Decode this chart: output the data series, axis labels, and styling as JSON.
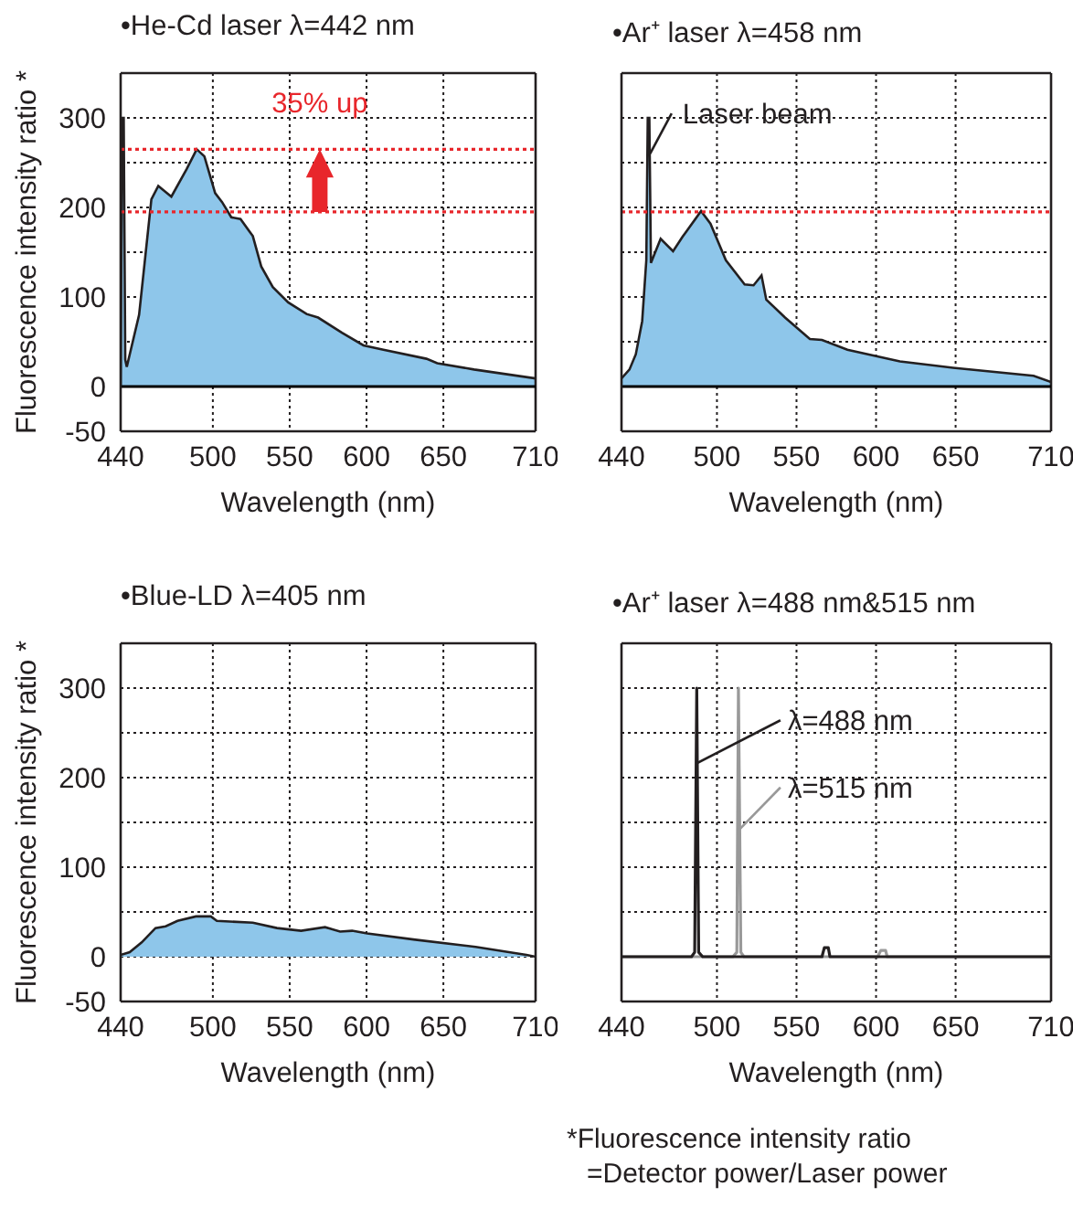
{
  "chart_data": [
    {
      "type": "area",
      "title": "•He-Cd laser λ=442 nm",
      "xlabel": "Wavelength (nm)",
      "ylabel": "Fluorescence intensity ratio *",
      "xlim": [
        440,
        710
      ],
      "ylim": [
        -50,
        350
      ],
      "xticks": [
        440,
        500,
        550,
        600,
        650,
        710
      ],
      "yticks": [
        -50,
        0,
        {
          "value": 50,
          "label": null
        },
        100,
        {
          "value": 150,
          "label": null
        },
        200,
        {
          "value": 250,
          "label": null
        },
        300
      ],
      "grid": true,
      "legend": false,
      "series": [
        {
          "color": "#8ec6ea",
          "x": [
            440,
            441,
            442,
            443,
            444,
            452,
            460,
            464.5,
            473,
            483,
            489.5,
            494.5,
            501.5,
            506,
            512,
            518,
            526,
            531.5,
            539,
            549,
            561,
            568.5,
            584,
            598,
            611,
            639,
            646,
            670,
            710
          ],
          "values": [
            0,
            300,
            300,
            30,
            22,
            80,
            209,
            224,
            212,
            243,
            265,
            257,
            216,
            206,
            189,
            187,
            168,
            134,
            111,
            94,
            81,
            77,
            60,
            46,
            41,
            31,
            26,
            19,
            9
          ]
        }
      ],
      "ref_lines": [
        {
          "axis": "y",
          "value": 0,
          "color": "#000000",
          "line_style": "solid"
        },
        {
          "axis": "y",
          "value": 265,
          "color": "#e8262b",
          "line_style": "dotted"
        },
        {
          "axis": "y",
          "value": 195,
          "color": "#e8262b",
          "line_style": "dotted"
        }
      ],
      "annotations": [
        "35% up"
      ]
    },
    {
      "type": "area",
      "title": "•Ar⁺ laser λ=458 nm",
      "xlabel": "Wavelength (nm)",
      "xlim": [
        440,
        710
      ],
      "ylim": [
        -50,
        350
      ],
      "xticks": [
        440,
        500,
        550,
        600,
        650,
        710
      ],
      "yticks": [
        -50,
        0,
        {
          "value": 50,
          "label": null
        },
        100,
        {
          "value": 150,
          "label": null
        },
        200,
        {
          "value": 250,
          "label": null
        },
        300
      ],
      "grid": true,
      "legend": false,
      "tick_labels": "x",
      "series": [
        {
          "color": "#8ec6ea",
          "x": [
            440,
            445,
            449,
            453,
            455.6,
            456.5,
            457.5,
            458.5,
            464.6,
            472.4,
            478.3,
            490,
            495.9,
            505.6,
            517.4,
            523,
            528,
            531,
            542.8,
            558.4,
            566,
            582,
            597.5,
            615,
            648.4,
            699,
            710
          ],
          "values": [
            9,
            19,
            36,
            73,
            141,
            300,
            300,
            138,
            165,
            151,
            167,
            196,
            182,
            141,
            114,
            113,
            124,
            97,
            77,
            53,
            52,
            41,
            35,
            28,
            21,
            12,
            5
          ]
        }
      ],
      "ref_lines": [
        {
          "axis": "y",
          "value": 0,
          "color": "#000000",
          "line_style": "solid"
        },
        {
          "axis": "y",
          "value": 195,
          "color": "#e8262b",
          "line_style": "dotted"
        }
      ],
      "annotations": [
        {
          "text": "Laser beam",
          "x": 458,
          "y": 260
        }
      ]
    },
    {
      "type": "area",
      "title": "•Blue-LD λ=405 nm",
      "xlabel": "Wavelength (nm)",
      "ylabel": "Fluorescence intensity ratio *",
      "xlim": [
        440,
        710
      ],
      "ylim": [
        -50,
        350
      ],
      "xticks": [
        440,
        500,
        550,
        600,
        650,
        710
      ],
      "yticks": [
        -50,
        0,
        {
          "value": 50,
          "label": null
        },
        100,
        {
          "value": 150,
          "label": null
        },
        200,
        {
          "value": 250,
          "label": null
        },
        300
      ],
      "grid": true,
      "legend": false,
      "series": [
        {
          "color": "#8ec6ea",
          "x": [
            440,
            445.9,
            453.7,
            462.7,
            469.3,
            477,
            489,
            498.7,
            502.6,
            526,
            541.7,
            557.4,
            573,
            582.8,
            590.6,
            600.4,
            631.7,
            671,
            704,
            710
          ],
          "values": [
            2,
            5,
            16,
            32,
            34,
            40,
            45,
            45,
            40,
            38,
            32,
            29,
            33,
            28,
            29,
            26,
            19,
            11,
            2,
            0
          ]
        }
      ]
    },
    {
      "type": "line",
      "title": "•Ar⁺ laser λ=488 nm&515 nm",
      "xlabel": "Wavelength (nm)",
      "xlim": [
        440,
        710
      ],
      "ylim": [
        -50,
        350
      ],
      "xticks": [
        440,
        500,
        550,
        600,
        650,
        710
      ],
      "yticks": [
        -50,
        0,
        {
          "value": 50,
          "label": null
        },
        100,
        {
          "value": 150,
          "label": null
        },
        200,
        {
          "value": 250,
          "label": null
        },
        300
      ],
      "grid": true,
      "legend": "top left",
      "tick_labels": "x",
      "marker": "none",
      "series": [
        {
          "name": "λ=515 nm",
          "color": "#999999",
          "x": [
            440,
            510,
            512.5,
            513.5,
            515,
            517,
            601,
            603,
            606,
            607,
            710
          ],
          "values": [
            0,
            0,
            5,
            300,
            5,
            0,
            0,
            7,
            7,
            0,
            0
          ]
        },
        {
          "name": "λ=488 nm",
          "color": "#231f20",
          "x": [
            440,
            484,
            486,
            487.3,
            488.5,
            491,
            566,
            567.5,
            570,
            571,
            710
          ],
          "values": [
            0,
            0,
            5,
            300,
            5,
            0,
            0,
            10,
            10,
            0,
            0
          ]
        }
      ],
      "annotations": [
        "*Fluorescence intensity ratio",
        "=Detector power/Laser power"
      ]
    }
  ]
}
